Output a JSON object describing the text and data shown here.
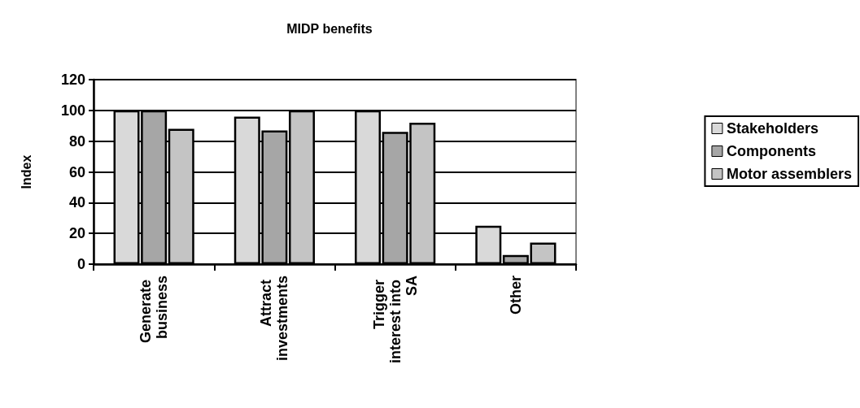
{
  "chart_data": {
    "type": "bar",
    "title": "MIDP benefits",
    "ylabel": "Index",
    "categories": [
      "Generate business",
      "Attract investments",
      "Trigger interest into SA",
      "Other"
    ],
    "series": [
      {
        "name": "Stakeholders",
        "color": "#d9d9d9",
        "values": [
          100,
          96,
          100,
          25
        ]
      },
      {
        "name": "Components",
        "color": "#a6a6a6",
        "values": [
          100,
          87,
          86,
          6
        ]
      },
      {
        "name": "Motor assemblers",
        "color": "#c4c4c4",
        "values": [
          88,
          100,
          92,
          14
        ]
      }
    ],
    "ylim": [
      0,
      120
    ],
    "yticks": [
      0,
      20,
      40,
      60,
      80,
      100,
      120
    ],
    "grid": "y",
    "legend": "right"
  }
}
